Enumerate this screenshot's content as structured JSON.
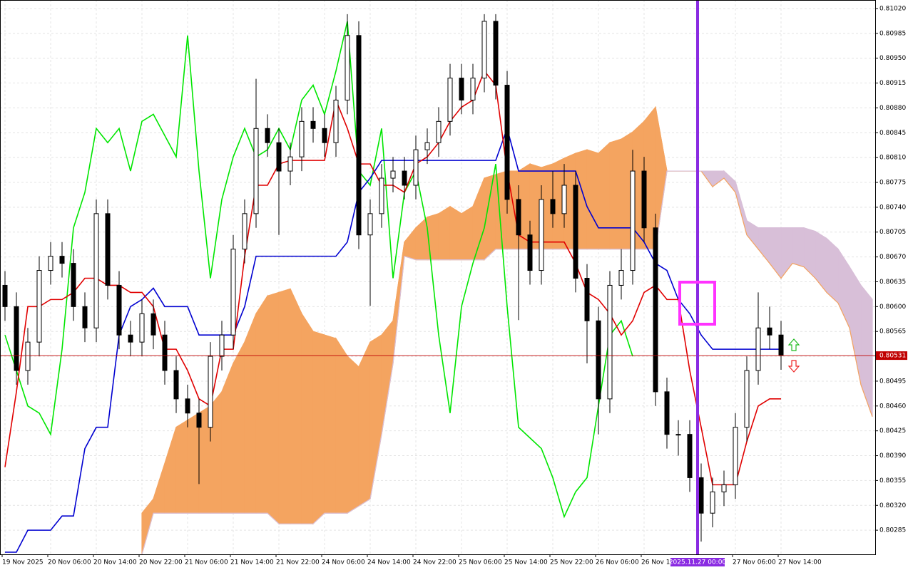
{
  "chart_data": {
    "type": "candlestick",
    "ylim": [
      0.80251,
      0.8103
    ],
    "yticks": [
      {
        "value": 0.8102,
        "label": "0.81020"
      },
      {
        "value": 0.80985,
        "label": "0.80985"
      },
      {
        "value": 0.8095,
        "label": "0.80950"
      },
      {
        "value": 0.80915,
        "label": "0.80915"
      },
      {
        "value": 0.8088,
        "label": "0.80880"
      },
      {
        "value": 0.80845,
        "label": "0.80845"
      },
      {
        "value": 0.8081,
        "label": "0.80810"
      },
      {
        "value": 0.80775,
        "label": "0.80775"
      },
      {
        "value": 0.8074,
        "label": "0.80740"
      },
      {
        "value": 0.80705,
        "label": "0.80705"
      },
      {
        "value": 0.8067,
        "label": "0.80670"
      },
      {
        "value": 0.80635,
        "label": "0.80635"
      },
      {
        "value": 0.806,
        "label": "0.80600"
      },
      {
        "value": 0.80565,
        "label": "0.80565"
      },
      {
        "value": 0.8053,
        "label": "0.80530"
      },
      {
        "value": 0.80495,
        "label": "0.80495"
      },
      {
        "value": 0.8046,
        "label": "0.80460"
      },
      {
        "value": 0.80425,
        "label": "0.80425"
      },
      {
        "value": 0.8039,
        "label": "0.80390"
      },
      {
        "value": 0.80355,
        "label": "0.80355"
      },
      {
        "value": 0.8032,
        "label": "0.80320"
      },
      {
        "value": 0.80285,
        "label": "0.80285"
      }
    ],
    "xticks": [
      {
        "value": 0,
        "label": "19 Nov 2025"
      },
      {
        "value": 4,
        "label": "20 Nov 06:00"
      },
      {
        "value": 8,
        "label": "20 Nov 14:00"
      },
      {
        "value": 12,
        "label": "20 Nov 22:00"
      },
      {
        "value": 16,
        "label": "21 Nov 06:00"
      },
      {
        "value": 20,
        "label": "21 Nov 14:00"
      },
      {
        "value": 24,
        "label": "21 Nov 22:00"
      },
      {
        "value": 28,
        "label": "24 Nov 06:00"
      },
      {
        "value": 32,
        "label": "24 Nov 14:00"
      },
      {
        "value": 36,
        "label": "24 Nov 22:00"
      },
      {
        "value": 40,
        "label": "25 Nov 06:00"
      },
      {
        "value": 44,
        "label": "25 Nov 14:00"
      },
      {
        "value": 48,
        "label": "25 Nov 22:00"
      },
      {
        "value": 52,
        "label": "26 Nov 06:00"
      },
      {
        "value": 56,
        "label": "26 Nov 14:00"
      },
      {
        "value": 64,
        "label": "27 Nov 06:00"
      },
      {
        "value": 68,
        "label": "27 Nov 14:00"
      }
    ],
    "grid": true,
    "up_color": "#ffffff",
    "down_color": "#000000",
    "candles": [
      [
        0.8063,
        0.8065,
        0.8058,
        0.806
      ],
      [
        0.806,
        0.8062,
        0.8049,
        0.8051
      ],
      [
        0.8051,
        0.8057,
        0.8049,
        0.8055
      ],
      [
        0.8055,
        0.80671,
        0.8053,
        0.80651
      ],
      [
        0.80651,
        0.80691,
        0.80631,
        0.80671
      ],
      [
        0.80671,
        0.80691,
        0.80641,
        0.80661
      ],
      [
        0.80661,
        0.80681,
        0.8058,
        0.806
      ],
      [
        0.806,
        0.8062,
        0.8055,
        0.8057
      ],
      [
        0.8057,
        0.80751,
        0.8055,
        0.80731
      ],
      [
        0.80731,
        0.80751,
        0.8061,
        0.8063
      ],
      [
        0.8063,
        0.8065,
        0.8054,
        0.8056
      ],
      [
        0.8056,
        0.8058,
        0.8053,
        0.8055
      ],
      [
        0.8055,
        0.8061,
        0.8053,
        0.8059
      ],
      [
        0.8059,
        0.8061,
        0.8054,
        0.8056
      ],
      [
        0.8056,
        0.8058,
        0.8049,
        0.8051
      ],
      [
        0.8051,
        0.8053,
        0.8045,
        0.8047
      ],
      [
        0.8047,
        0.8049,
        0.8043,
        0.8045
      ],
      [
        0.8045,
        0.8047,
        0.8035,
        0.8043
      ],
      [
        0.8043,
        0.8055,
        0.8041,
        0.8053
      ],
      [
        0.8053,
        0.8058,
        0.8051,
        0.8056
      ],
      [
        0.8056,
        0.80701,
        0.8054,
        0.80681
      ],
      [
        0.80681,
        0.80751,
        0.80661,
        0.80731
      ],
      [
        0.80731,
        0.80921,
        0.80711,
        0.80851
      ],
      [
        0.80851,
        0.80871,
        0.80811,
        0.80831
      ],
      [
        0.80831,
        0.80851,
        0.80701,
        0.80791
      ],
      [
        0.80791,
        0.80831,
        0.80771,
        0.80811
      ],
      [
        0.80811,
        0.80881,
        0.80791,
        0.80861
      ],
      [
        0.80861,
        0.80881,
        0.80831,
        0.80851
      ],
      [
        0.80851,
        0.80871,
        0.80811,
        0.80831
      ],
      [
        0.80831,
        0.80911,
        0.80811,
        0.80891
      ],
      [
        0.80891,
        0.81012,
        0.80871,
        0.80982
      ],
      [
        0.80982,
        0.81002,
        0.80681,
        0.80701
      ],
      [
        0.80701,
        0.80751,
        0.80601,
        0.80731
      ],
      [
        0.80731,
        0.80801,
        0.80711,
        0.80781
      ],
      [
        0.80781,
        0.80811,
        0.80761,
        0.80791
      ],
      [
        0.80791,
        0.80811,
        0.80751,
        0.80771
      ],
      [
        0.80771,
        0.80841,
        0.80751,
        0.80821
      ],
      [
        0.80821,
        0.80851,
        0.80801,
        0.80831
      ],
      [
        0.80831,
        0.80881,
        0.80811,
        0.80861
      ],
      [
        0.80861,
        0.80942,
        0.80841,
        0.80922
      ],
      [
        0.80922,
        0.80942,
        0.80871,
        0.80891
      ],
      [
        0.80891,
        0.80942,
        0.80871,
        0.80922
      ],
      [
        0.80922,
        0.81012,
        0.80902,
        0.81002
      ],
      [
        0.81002,
        0.81012,
        0.80892,
        0.80912
      ],
      [
        0.80912,
        0.80932,
        0.80731,
        0.80751
      ],
      [
        0.80751,
        0.80771,
        0.80581,
        0.80701
      ],
      [
        0.80701,
        0.80721,
        0.80631,
        0.80651
      ],
      [
        0.80651,
        0.80771,
        0.80631,
        0.80751
      ],
      [
        0.80751,
        0.80791,
        0.80711,
        0.80731
      ],
      [
        0.80731,
        0.80801,
        0.80711,
        0.80771
      ],
      [
        0.80771,
        0.80791,
        0.8062,
        0.8064
      ],
      [
        0.8064,
        0.8066,
        0.8052,
        0.8058
      ],
      [
        0.8058,
        0.806,
        0.8042,
        0.8047
      ],
      [
        0.8047,
        0.8065,
        0.8045,
        0.8063
      ],
      [
        0.8063,
        0.80681,
        0.8061,
        0.80651
      ],
      [
        0.80651,
        0.80821,
        0.80631,
        0.80791
      ],
      [
        0.80791,
        0.80811,
        0.80691,
        0.80711
      ],
      [
        0.80711,
        0.80731,
        0.8046,
        0.8048
      ],
      [
        0.8048,
        0.805,
        0.804,
        0.8042
      ],
      [
        0.8042,
        0.8044,
        0.8039,
        0.8042
      ],
      [
        0.8042,
        0.8044,
        0.80339,
        0.80359
      ],
      [
        0.80359,
        0.80379,
        0.80269,
        0.80309
      ],
      [
        0.80309,
        0.80359,
        0.80289,
        0.80339
      ],
      [
        0.80339,
        0.80369,
        0.80319,
        0.80349
      ],
      [
        0.80349,
        0.8045,
        0.80329,
        0.8043
      ],
      [
        0.8043,
        0.8053,
        0.8041,
        0.8051
      ],
      [
        0.8051,
        0.8062,
        0.8049,
        0.8057
      ],
      [
        0.8057,
        0.806,
        0.8054,
        0.8056
      ],
      [
        0.8056,
        0.8058,
        0.80511,
        0.80531
      ]
    ],
    "series": [
      {
        "color": "#00e600",
        "values": [
          0.8056,
          0.8051,
          0.8046,
          0.8045,
          0.8042,
          0.8054,
          0.80711,
          0.80761,
          0.80851,
          0.80831,
          0.80851,
          0.80791,
          0.80861,
          0.80871,
          0.80841,
          0.80811,
          0.80982,
          0.80791,
          0.8064,
          0.80751,
          0.80811,
          0.80851,
          0.80811,
          0.80821,
          0.80851,
          0.80821,
          0.80891,
          0.80912,
          0.80871,
          0.80932,
          0.81002,
          0.80791,
          0.80771,
          0.80851,
          0.8064,
          0.80761,
          0.80791,
          0.80711,
          0.8056,
          0.8045,
          0.806,
          0.80661,
          0.80711,
          0.80801,
          0.806,
          0.8043,
          0.80415,
          0.804,
          0.80359,
          0.80304,
          0.80339,
          0.80359,
          0.8046,
          0.8056,
          0.8058,
          0.8053,
          null,
          null,
          null,
          null,
          null,
          null,
          null,
          null,
          null,
          null,
          null,
          null,
          null,
          null,
          null,
          null,
          null,
          null,
          null,
          null,
          null
        ]
      },
      {
        "color": "#0000d0",
        "values": [
          0.80254,
          0.80254,
          0.80285,
          0.80285,
          0.80285,
          0.80305,
          0.80305,
          0.804,
          0.8043,
          0.8043,
          0.8056,
          0.806,
          0.8061,
          0.80626,
          0.806,
          0.806,
          0.806,
          0.8056,
          0.8056,
          0.8056,
          0.8056,
          0.806,
          0.80671,
          0.80671,
          0.80671,
          0.80671,
          0.80671,
          0.80671,
          0.80671,
          0.80671,
          0.80691,
          0.80761,
          0.80781,
          0.80806,
          0.80806,
          0.80806,
          0.80806,
          0.80806,
          0.80806,
          0.80806,
          0.80806,
          0.80806,
          0.80806,
          0.80806,
          0.80851,
          0.80791,
          0.80791,
          0.80791,
          0.80791,
          0.80791,
          0.80791,
          0.80741,
          0.80711,
          0.80711,
          0.80711,
          0.80711,
          0.80691,
          0.80661,
          0.80651,
          0.8061,
          0.8059,
          0.8056,
          0.8054,
          0.8054,
          0.8054,
          0.8054,
          0.8054,
          0.8054,
          0.8054,
          null,
          null,
          null,
          null,
          null,
          null,
          null,
          null
        ]
      },
      {
        "color": "#e00000",
        "values": [
          0.80374,
          0.8048,
          0.806,
          0.806,
          0.8061,
          0.8061,
          0.8062,
          0.8064,
          0.8064,
          0.8063,
          0.8063,
          0.8062,
          0.8062,
          0.806,
          0.8054,
          0.8054,
          0.8051,
          0.8047,
          0.8046,
          0.8054,
          0.8054,
          0.80671,
          0.80771,
          0.80771,
          0.80801,
          0.80806,
          0.80806,
          0.80806,
          0.80806,
          0.80891,
          0.80851,
          0.80801,
          0.80801,
          0.80771,
          0.80771,
          0.80761,
          0.80801,
          0.80811,
          0.80831,
          0.80861,
          0.80881,
          0.80891,
          0.80932,
          0.80912,
          0.80791,
          0.80701,
          0.80691,
          0.80691,
          0.80691,
          0.80691,
          0.80661,
          0.8062,
          0.8061,
          0.8059,
          0.8056,
          0.8058,
          0.8062,
          0.8063,
          0.8061,
          0.8061,
          0.8051,
          0.8043,
          0.80349,
          0.80349,
          0.80349,
          0.8041,
          0.8046,
          0.8047,
          0.8047,
          null,
          null,
          null,
          null,
          null,
          null,
          null,
          null
        ]
      }
    ],
    "cloud": {
      "up_color": "#f4a460",
      "down_color": "#d8bfd8",
      "span_a": [
        null,
        null,
        null,
        null,
        null,
        null,
        null,
        null,
        null,
        null,
        null,
        null,
        0.80309,
        0.80329,
        0.80379,
        0.8043,
        0.8044,
        0.8045,
        0.8046,
        0.8048,
        0.8052,
        0.8055,
        0.8059,
        0.80615,
        0.8062,
        0.80625,
        0.8059,
        0.80565,
        0.8056,
        0.80555,
        0.8053,
        0.80515,
        0.8055,
        0.8056,
        0.8058,
        0.80691,
        0.80711,
        0.80726,
        0.80731,
        0.80741,
        0.80731,
        0.80741,
        0.80781,
        0.80786,
        0.80791,
        0.80791,
        0.80801,
        0.80796,
        0.80801,
        0.80809,
        0.80816,
        0.80821,
        0.80816,
        0.80831,
        0.80836,
        0.80846,
        0.80861,
        0.80881,
        0.80791,
        0.80791,
        0.80791,
        0.80791,
        0.80769,
        0.80781,
        0.80761,
        0.80701,
        0.80681,
        0.80661,
        0.8064,
        0.80661,
        0.80656,
        0.8064,
        0.8062,
        0.80605,
        0.8057,
        0.8049,
        0.80445
      ],
      "span_b": [
        null,
        null,
        null,
        null,
        null,
        null,
        null,
        null,
        null,
        null,
        null,
        null,
        0.80251,
        0.80309,
        0.80309,
        0.80309,
        0.80309,
        0.80309,
        0.80309,
        0.80309,
        0.80309,
        0.80309,
        0.80309,
        0.80309,
        0.80294,
        0.80294,
        0.80294,
        0.80294,
        0.80309,
        0.80309,
        0.80309,
        0.80319,
        0.80329,
        0.8042,
        0.8052,
        0.80671,
        0.80666,
        0.80666,
        0.80666,
        0.80666,
        0.80666,
        0.80666,
        0.80666,
        0.80681,
        0.80681,
        0.80681,
        0.80681,
        0.80681,
        0.80681,
        0.80681,
        0.80681,
        0.80681,
        0.80681,
        0.80681,
        0.80681,
        0.80681,
        0.80681,
        0.80681,
        0.80791,
        0.80791,
        0.80791,
        0.80791,
        0.80791,
        0.80791,
        0.80776,
        0.80721,
        0.80711,
        0.80711,
        0.80711,
        0.80711,
        0.80711,
        0.80706,
        0.80696,
        0.80681,
        0.80656,
        0.8063,
        0.8061
      ]
    },
    "current_price": {
      "value": 0.80531,
      "label": "0.80531",
      "color": "#c00000"
    },
    "marker": {
      "value": 61,
      "label": "2025.11.27 00:00",
      "color": "#8a2be2"
    }
  }
}
